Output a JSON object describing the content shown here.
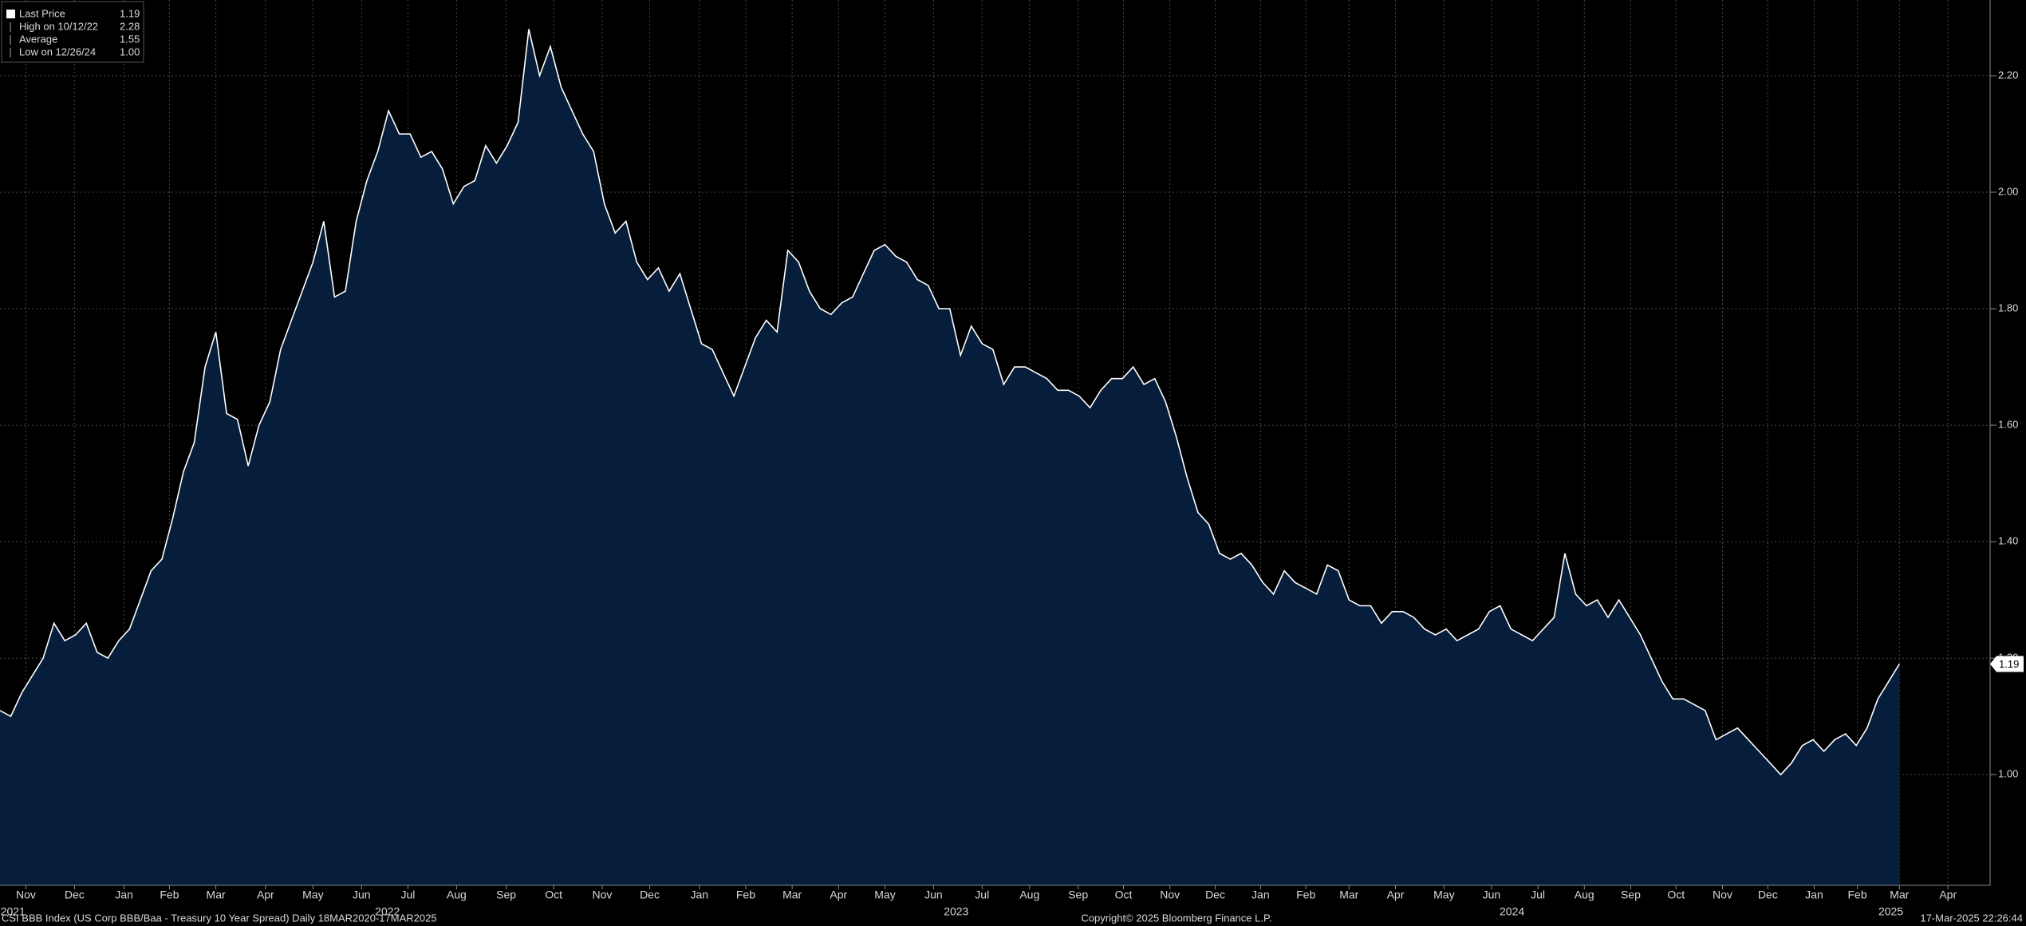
{
  "chart_data": {
    "type": "area",
    "series": [
      {
        "name": "Last Price",
        "color": "#ffffff",
        "fill": "#061e3b",
        "values": [
          1.11,
          1.1,
          1.14,
          1.17,
          1.2,
          1.26,
          1.23,
          1.24,
          1.26,
          1.21,
          1.2,
          1.23,
          1.25,
          1.3,
          1.35,
          1.37,
          1.44,
          1.52,
          1.57,
          1.7,
          1.76,
          1.62,
          1.61,
          1.53,
          1.6,
          1.64,
          1.73,
          1.78,
          1.83,
          1.88,
          1.95,
          1.82,
          1.83,
          1.95,
          2.02,
          2.07,
          2.14,
          2.1,
          2.1,
          2.06,
          2.07,
          2.04,
          1.98,
          2.01,
          2.02,
          2.08,
          2.05,
          2.08,
          2.12,
          2.28,
          2.2,
          2.25,
          2.18,
          2.14,
          2.1,
          2.07,
          1.98,
          1.93,
          1.95,
          1.88,
          1.85,
          1.87,
          1.83,
          1.86,
          1.8,
          1.74,
          1.73,
          1.69,
          1.65,
          1.7,
          1.75,
          1.78,
          1.76,
          1.9,
          1.88,
          1.83,
          1.8,
          1.79,
          1.81,
          1.82,
          1.86,
          1.9,
          1.91,
          1.89,
          1.88,
          1.85,
          1.84,
          1.8,
          1.8,
          1.72,
          1.77,
          1.74,
          1.73,
          1.67,
          1.7,
          1.7,
          1.69,
          1.68,
          1.66,
          1.66,
          1.65,
          1.63,
          1.66,
          1.68,
          1.68,
          1.7,
          1.67,
          1.68,
          1.64,
          1.58,
          1.51,
          1.45,
          1.43,
          1.38,
          1.37,
          1.38,
          1.36,
          1.33,
          1.31,
          1.35,
          1.33,
          1.32,
          1.31,
          1.36,
          1.35,
          1.3,
          1.29,
          1.29,
          1.26,
          1.28,
          1.28,
          1.27,
          1.25,
          1.24,
          1.25,
          1.23,
          1.24,
          1.25,
          1.28,
          1.29,
          1.25,
          1.24,
          1.23,
          1.25,
          1.27,
          1.38,
          1.31,
          1.29,
          1.3,
          1.27,
          1.3,
          1.27,
          1.24,
          1.2,
          1.16,
          1.13,
          1.13,
          1.12,
          1.11,
          1.06,
          1.07,
          1.08,
          1.06,
          1.04,
          1.02,
          1.0,
          1.02,
          1.05,
          1.06,
          1.04,
          1.06,
          1.07,
          1.05,
          1.08,
          1.13,
          1.16,
          1.19
        ]
      }
    ],
    "xlim": [
      0,
      184.4
    ],
    "ylim": [
      0.81,
      2.33
    ],
    "yticks": [
      {
        "value": 1,
        "label": "1.00"
      },
      {
        "value": 1.2,
        "label": "1.20"
      },
      {
        "value": 1.4,
        "label": "1.40"
      },
      {
        "value": 1.6,
        "label": "1.60"
      },
      {
        "value": 1.8,
        "label": "1.80"
      },
      {
        "value": 2,
        "label": "2.00"
      },
      {
        "value": 2.2,
        "label": "2.20"
      }
    ],
    "xticks": [
      {
        "value": 2.4,
        "label": "Nov"
      },
      {
        "value": 6.9,
        "label": "Dec"
      },
      {
        "value": 11.5,
        "label": "Jan"
      },
      {
        "value": 15.7,
        "label": "Feb"
      },
      {
        "value": 20.0,
        "label": "Mar"
      },
      {
        "value": 24.6,
        "label": "Apr"
      },
      {
        "value": 29.0,
        "label": "May"
      },
      {
        "value": 33.5,
        "label": "Jun"
      },
      {
        "value": 37.8,
        "label": "Jul"
      },
      {
        "value": 42.3,
        "label": "Aug"
      },
      {
        "value": 46.9,
        "label": "Sep"
      },
      {
        "value": 51.3,
        "label": "Oct"
      },
      {
        "value": 55.8,
        "label": "Nov"
      },
      {
        "value": 60.2,
        "label": "Dec"
      },
      {
        "value": 64.8,
        "label": "Jan"
      },
      {
        "value": 69.1,
        "label": "Feb"
      },
      {
        "value": 73.4,
        "label": "Mar"
      },
      {
        "value": 77.7,
        "label": "Apr"
      },
      {
        "value": 82.0,
        "label": "May"
      },
      {
        "value": 86.5,
        "label": "Jun"
      },
      {
        "value": 91.0,
        "label": "Jul"
      },
      {
        "value": 95.4,
        "label": "Aug"
      },
      {
        "value": 99.9,
        "label": "Sep"
      },
      {
        "value": 104.1,
        "label": "Oct"
      },
      {
        "value": 108.4,
        "label": "Nov"
      },
      {
        "value": 112.6,
        "label": "Dec"
      },
      {
        "value": 116.8,
        "label": "Jan"
      },
      {
        "value": 121.0,
        "label": "Feb"
      },
      {
        "value": 125.0,
        "label": "Mar"
      },
      {
        "value": 129.3,
        "label": "Apr"
      },
      {
        "value": 133.8,
        "label": "May"
      },
      {
        "value": 138.2,
        "label": "Jun"
      },
      {
        "value": 142.5,
        "label": "Jul"
      },
      {
        "value": 146.8,
        "label": "Aug"
      },
      {
        "value": 151.1,
        "label": "Sep"
      },
      {
        "value": 155.3,
        "label": "Oct"
      },
      {
        "value": 159.6,
        "label": "Nov"
      },
      {
        "value": 163.8,
        "label": "Dec"
      },
      {
        "value": 168.1,
        "label": "Jan"
      },
      {
        "value": 172.1,
        "label": "Feb"
      },
      {
        "value": 176.0,
        "label": "Mar"
      },
      {
        "value": 180.5,
        "label": "Apr"
      }
    ],
    "year_ticks": [
      {
        "value": 1.2,
        "label": "2021"
      },
      {
        "value": 35.9,
        "label": "2022"
      },
      {
        "value": 88.6,
        "label": "2023"
      },
      {
        "value": 140.1,
        "label": "2024"
      },
      {
        "value": 175.2,
        "label": "2025"
      }
    ],
    "grid": true,
    "legend": [
      {
        "label": "Last Price",
        "value": 1.19
      },
      {
        "label": "High on 10/12/22",
        "value": 2.28
      },
      {
        "label": "Average",
        "value": 1.55
      },
      {
        "label": "Low on 12/26/24",
        "value": {
          "value": 1,
          "label": "1.00"
        }
      }
    ],
    "footer": {
      "source": "CSI BBB Index (US Corp BBB/Baa - Treasury 10 Year Spread)  Daily 18MAR2020-17MAR2025",
      "copyright": "Copyright© 2025 Bloomberg Finance L.P.",
      "timestamp": "17-Mar-2025 22:26:44"
    }
  }
}
